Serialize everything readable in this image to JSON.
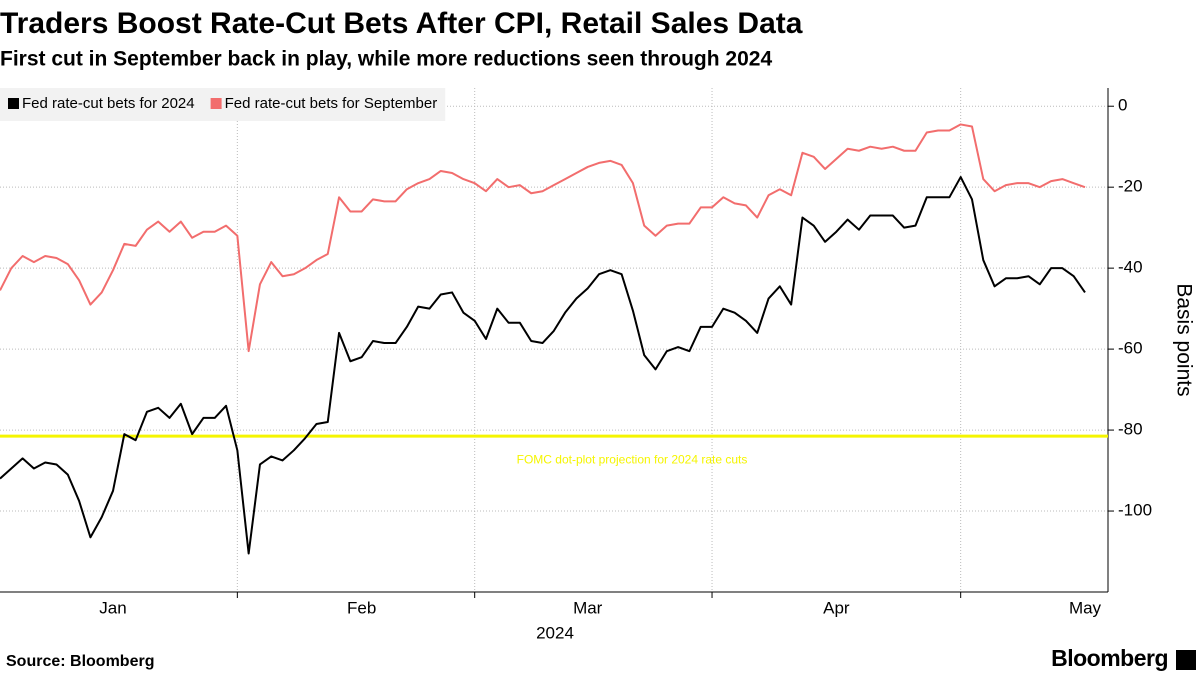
{
  "chart_data": {
    "type": "line",
    "title": "Traders Boost Rate-Cut Bets After CPI, Retail Sales Data",
    "subtitle": "First cut in September back in play, while more reductions seen through 2024",
    "source": "Source: Bloomberg",
    "brand": "Bloomberg",
    "xlabel": "2024",
    "ylabel": "Basis points",
    "categories": [
      null,
      null,
      null,
      null,
      null,
      null,
      null,
      null,
      null,
      null,
      "Jan",
      null,
      null,
      null,
      null,
      null,
      null,
      null,
      null,
      null,
      null,
      null,
      null,
      null,
      null,
      null,
      null,
      null,
      null,
      null,
      null,
      null,
      "Feb",
      null,
      null,
      null,
      null,
      null,
      null,
      null,
      null,
      null,
      null,
      null,
      null,
      null,
      null,
      null,
      null,
      null,
      null,
      null,
      "Mar",
      null,
      null,
      null,
      null,
      null,
      null,
      null,
      null,
      null,
      null,
      null,
      null,
      null,
      null,
      null,
      null,
      null,
      null,
      null,
      null,
      null,
      "Apr",
      null,
      null,
      null,
      null,
      null,
      null,
      null,
      null,
      null,
      null,
      null,
      null,
      null,
      null,
      null,
      null,
      null,
      null,
      null,
      null,
      null,
      "May"
    ],
    "series": [
      {
        "name": "Fed rate-cut bets for 2024",
        "color": "#000000",
        "values": [
          -92,
          -89.5,
          -87,
          -89.5,
          -88,
          -88.5,
          -91,
          -97.5,
          -106.5,
          -101.5,
          -95,
          -81,
          -82.5,
          -75.5,
          -74.5,
          -77,
          -73.5,
          -81,
          -77,
          -77,
          -74,
          -85,
          -110.5,
          -88.5,
          -86.5,
          -87.5,
          -85,
          -82,
          -78.5,
          -78,
          -56,
          -63,
          -62,
          -58,
          -58.5,
          -58.5,
          -54.5,
          -49.5,
          -50,
          -46.5,
          -46,
          -51,
          -53,
          -57.5,
          -50,
          -53.5,
          -53.5,
          -58,
          -58.5,
          -55.5,
          -51,
          -47.5,
          -45,
          -41.5,
          -40.5,
          -41.5,
          -50.5,
          -61.5,
          -65,
          -60.5,
          -59.5,
          -60.5,
          -54.5,
          -54.5,
          -50,
          -51,
          -53,
          -56,
          -47.5,
          -44.5,
          -49,
          -27.5,
          -29.5,
          -33.5,
          -31,
          -28,
          -30.5,
          -27,
          -27,
          -27,
          -30,
          -29.5,
          -22.5,
          -22.5,
          -22.5,
          -17.5,
          -23,
          -38,
          -44.5,
          -42.5,
          -42.5,
          -42,
          -44,
          -40,
          -40,
          -42,
          -46
        ]
      },
      {
        "name": "Fed rate-cut bets for September",
        "color": "#f26d6d",
        "values": [
          -45.5,
          -40,
          -37,
          -38.5,
          -37,
          -37.5,
          -39,
          -43,
          -49,
          -46,
          -40.5,
          -34,
          -34.5,
          -30.5,
          -28.5,
          -31,
          -28.5,
          -32.5,
          -31,
          -31,
          -29.5,
          -32,
          -60.5,
          -44,
          -38.5,
          -42,
          -41.5,
          -40,
          -38,
          -36.5,
          -22.5,
          -26,
          -26,
          -23,
          -23.5,
          -23.5,
          -20.5,
          -19,
          -18,
          -16,
          -16.5,
          -18,
          -19,
          -21,
          -18,
          -20,
          -19.5,
          -21.5,
          -21,
          -19.5,
          -18,
          -16.5,
          -15,
          -14,
          -13.5,
          -14.5,
          -19,
          -29.5,
          -32,
          -29.5,
          -29,
          -29,
          -25,
          -25,
          -22.5,
          -24,
          -24.5,
          -27.5,
          -22,
          -20.5,
          -22,
          -11.5,
          -12.5,
          -15.5,
          -13,
          -10.5,
          -11,
          -10,
          -10.5,
          -10,
          -11,
          -11,
          -6.5,
          -6,
          -6,
          -4.5,
          -5,
          -18,
          -21,
          -19.5,
          -19,
          -19,
          -20,
          -18.5,
          -18,
          -19,
          -20
        ]
      }
    ],
    "hline": {
      "value": -81.5,
      "label": "FOMC dot-plot projection for 2024 rate cuts",
      "color": "#f5f500"
    },
    "ylim": [
      -120,
      4.5
    ],
    "yticks": [
      0,
      -20,
      -40,
      -60,
      -80,
      -100
    ],
    "grid": true,
    "legend": "upper left"
  }
}
